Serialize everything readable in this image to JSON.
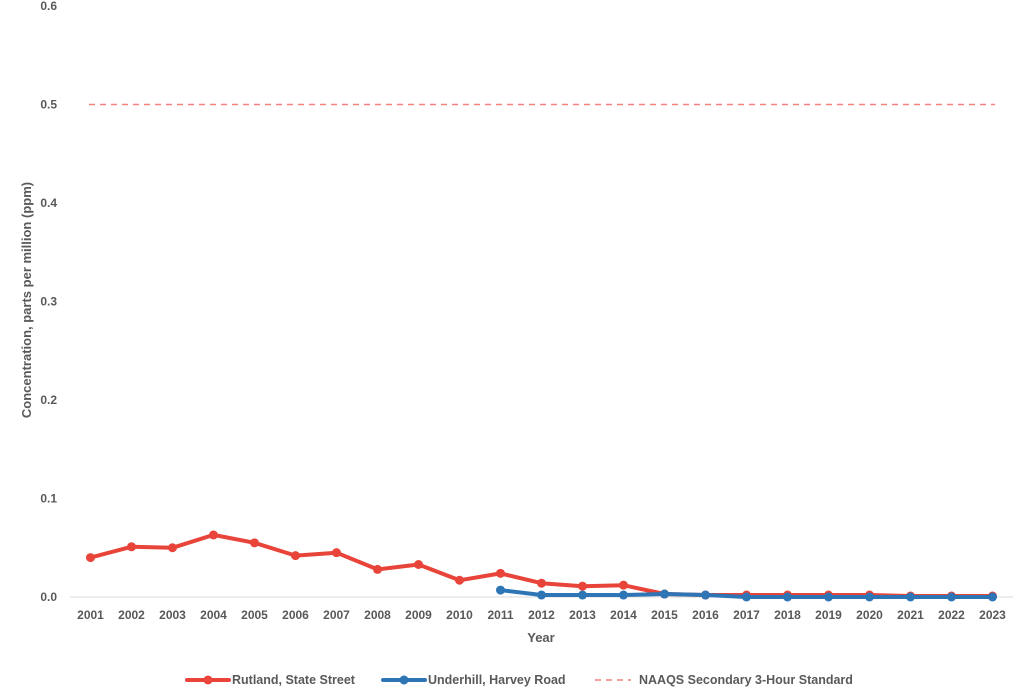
{
  "chart_data": {
    "type": "line",
    "title": "",
    "xlabel": "Year",
    "ylabel": "Concentration, parts per million (ppm)",
    "ylim": [
      0,
      0.6
    ],
    "yticks": [
      "0.0",
      "0.1",
      "0.2",
      "0.3",
      "0.4",
      "0.5",
      "0.6"
    ],
    "categories": [
      "2001",
      "2002",
      "2003",
      "2004",
      "2005",
      "2006",
      "2007",
      "2008",
      "2009",
      "2010",
      "2011",
      "2012",
      "2013",
      "2014",
      "2015",
      "2016",
      "2017",
      "2018",
      "2019",
      "2020",
      "2021",
      "2022",
      "2023"
    ],
    "grid": false,
    "legend_position": "bottom",
    "series": [
      {
        "name": "Rutland, State Street",
        "color": "#e8443a",
        "style": "solid-markers",
        "values": [
          0.04,
          0.051,
          0.05,
          0.063,
          0.055,
          0.042,
          0.045,
          0.028,
          0.033,
          0.017,
          0.024,
          0.014,
          0.011,
          0.012,
          0.003,
          0.002,
          0.002,
          0.002,
          0.002,
          0.002,
          0.001,
          0.001,
          0.001
        ]
      },
      {
        "name": "Underhill, Harvey Road",
        "color": "#2e75b6",
        "style": "solid-markers",
        "values": [
          null,
          null,
          null,
          null,
          null,
          null,
          null,
          null,
          null,
          null,
          0.007,
          0.002,
          0.002,
          0.002,
          0.003,
          0.002,
          0.0,
          0.0,
          0.0,
          0.0,
          0.0,
          0.0,
          0.0
        ]
      },
      {
        "name": "NAAQS Secondary 3-Hour Standard",
        "color": "#f4817f",
        "style": "dashed",
        "values": [
          0.5,
          0.5,
          0.5,
          0.5,
          0.5,
          0.5,
          0.5,
          0.5,
          0.5,
          0.5,
          0.5,
          0.5,
          0.5,
          0.5,
          0.5,
          0.5,
          0.5,
          0.5,
          0.5,
          0.5,
          0.5,
          0.5,
          0.5
        ]
      }
    ]
  }
}
